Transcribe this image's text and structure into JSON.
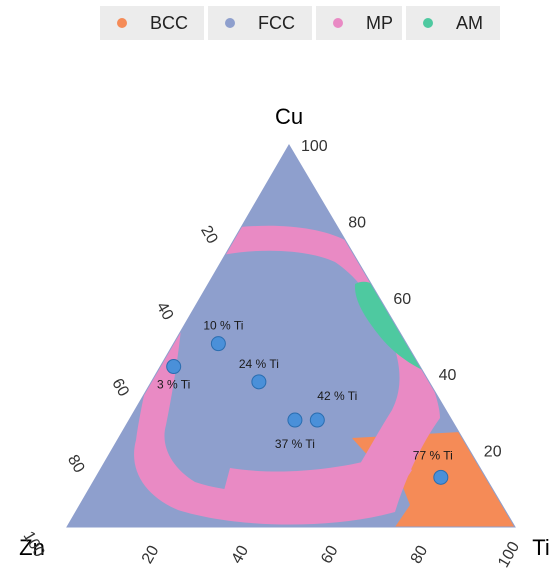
{
  "chart_data": {
    "type": "ternary",
    "legend": {
      "placement": "top",
      "entries": [
        {
          "name": "BCC",
          "color": "#f58b57"
        },
        {
          "name": "FCC",
          "color": "#8e9fcd"
        },
        {
          "name": "MP",
          "color": "#e98ac4"
        },
        {
          "name": "AM",
          "color": "#4ec9a0"
        }
      ]
    },
    "axes": {
      "top": "Cu",
      "left": "Zn",
      "right": "Ti",
      "ticks": [
        "20",
        "40",
        "60",
        "80",
        "100"
      ]
    },
    "points": [
      {
        "label": "3 % Ti",
        "cu": 42,
        "ti": 3
      },
      {
        "label": "10 % Ti",
        "cu": 48,
        "ti": 10
      },
      {
        "label": "24 % Ti",
        "cu": 38,
        "ti": 24
      },
      {
        "label": "37 % Ti",
        "cu": 28,
        "ti": 37
      },
      {
        "label": "42 % Ti",
        "cu": 28,
        "ti": 42
      },
      {
        "label": "77 % Ti",
        "cu": 13,
        "ti": 77
      }
    ],
    "point_color": "#4a90d9"
  }
}
